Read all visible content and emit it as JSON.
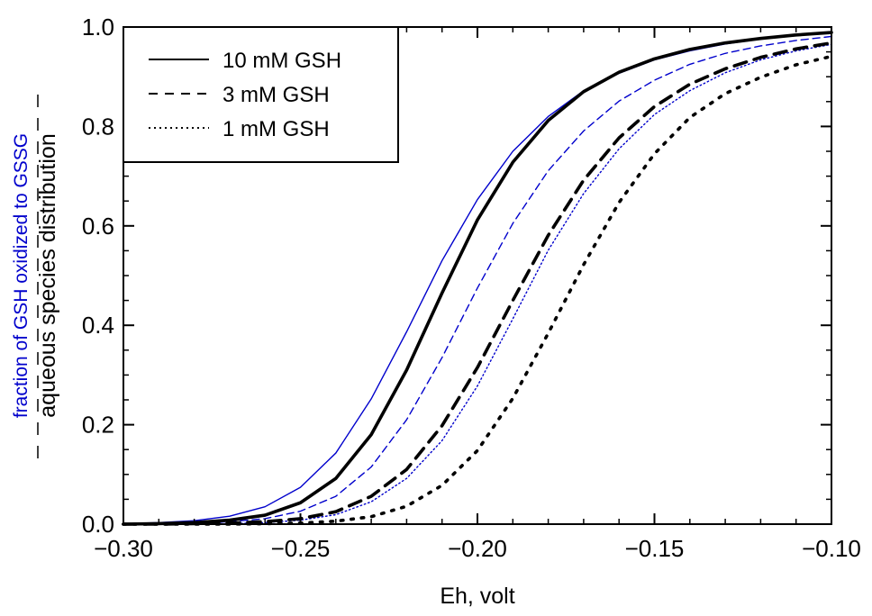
{
  "chart_data": {
    "type": "line",
    "title": "",
    "xlabel": "Eh, volt",
    "ylabel_blue": "fraction of GSH oxidized to GSSG",
    "ylabel_black": "aqueous species distribution",
    "xlim": [
      -0.3,
      -0.1
    ],
    "ylim": [
      0.0,
      1.0
    ],
    "x_ticks": [
      -0.3,
      -0.25,
      -0.2,
      -0.15,
      -0.1
    ],
    "x_tick_labels": [
      "−0.30",
      "−0.25",
      "−0.20",
      "−0.15",
      "−0.10"
    ],
    "y_ticks": [
      0.0,
      0.2,
      0.4,
      0.6,
      0.8,
      1.0
    ],
    "y_tick_labels": [
      "0.0",
      "0.2",
      "0.4",
      "0.6",
      "0.8",
      "1.0"
    ],
    "grid": false,
    "legend_position": "top-left",
    "legend": [
      {
        "label": "10 mM GSH",
        "style": "solid"
      },
      {
        "label": "3 mM GSH",
        "style": "dashed"
      },
      {
        "label": "1 mM GSH",
        "style": "dotted"
      }
    ],
    "x": [
      -0.3,
      -0.29,
      -0.28,
      -0.27,
      -0.26,
      -0.25,
      -0.24,
      -0.23,
      -0.22,
      -0.21,
      -0.2,
      -0.19,
      -0.18,
      -0.17,
      -0.16,
      -0.15,
      -0.14,
      -0.13,
      -0.12,
      -0.11,
      -0.1
    ],
    "series": [
      {
        "label": "10 mM GSH",
        "group": "fraction of GSH oxidized to GSSG",
        "color": "#0000cc",
        "style": "solid",
        "width": "thin",
        "values": [
          0.001,
          0.003,
          0.007,
          0.016,
          0.035,
          0.074,
          0.143,
          0.252,
          0.387,
          0.53,
          0.653,
          0.75,
          0.82,
          0.872,
          0.907,
          0.934,
          0.952,
          0.966,
          0.976,
          0.983,
          0.988
        ]
      },
      {
        "label": "3 mM GSH",
        "group": "fraction of GSH oxidized to GSSG",
        "color": "#0000cc",
        "style": "dashed",
        "width": "thin",
        "values": [
          0.0,
          0.001,
          0.002,
          0.005,
          0.011,
          0.026,
          0.056,
          0.115,
          0.21,
          0.335,
          0.475,
          0.605,
          0.711,
          0.791,
          0.851,
          0.893,
          0.925,
          0.947,
          0.962,
          0.973,
          0.981
        ]
      },
      {
        "label": "1 mM GSH",
        "group": "fraction of GSH oxidized to GSSG",
        "color": "#0000cc",
        "style": "dotted",
        "width": "thin",
        "values": [
          0.0,
          0.0,
          0.001,
          0.001,
          0.003,
          0.008,
          0.019,
          0.045,
          0.092,
          0.168,
          0.278,
          0.413,
          0.551,
          0.665,
          0.755,
          0.824,
          0.872,
          0.908,
          0.934,
          0.952,
          0.965
        ]
      },
      {
        "label": "10 mM GSH",
        "group": "aqueous species distribution",
        "color": "#000000",
        "style": "solid",
        "width": "thick",
        "values": [
          0.0,
          0.001,
          0.003,
          0.008,
          0.018,
          0.043,
          0.092,
          0.18,
          0.31,
          0.465,
          0.612,
          0.728,
          0.812,
          0.87,
          0.909,
          0.936,
          0.955,
          0.968,
          0.977,
          0.984,
          0.989
        ]
      },
      {
        "label": "3 mM GSH",
        "group": "aqueous species distribution",
        "color": "#000000",
        "style": "dashed",
        "width": "thick",
        "values": [
          0.0,
          0.0,
          0.001,
          0.002,
          0.005,
          0.011,
          0.025,
          0.056,
          0.11,
          0.198,
          0.315,
          0.45,
          0.581,
          0.692,
          0.777,
          0.84,
          0.885,
          0.916,
          0.939,
          0.956,
          0.968
        ]
      },
      {
        "label": "1 mM GSH",
        "group": "aqueous species distribution",
        "color": "#000000",
        "style": "dotted",
        "width": "thick",
        "values": [
          0.0,
          0.0,
          0.0,
          0.0,
          0.001,
          0.002,
          0.006,
          0.015,
          0.036,
          0.078,
          0.148,
          0.253,
          0.384,
          0.522,
          0.647,
          0.745,
          0.818,
          0.866,
          0.899,
          0.924,
          0.941
        ]
      }
    ]
  }
}
